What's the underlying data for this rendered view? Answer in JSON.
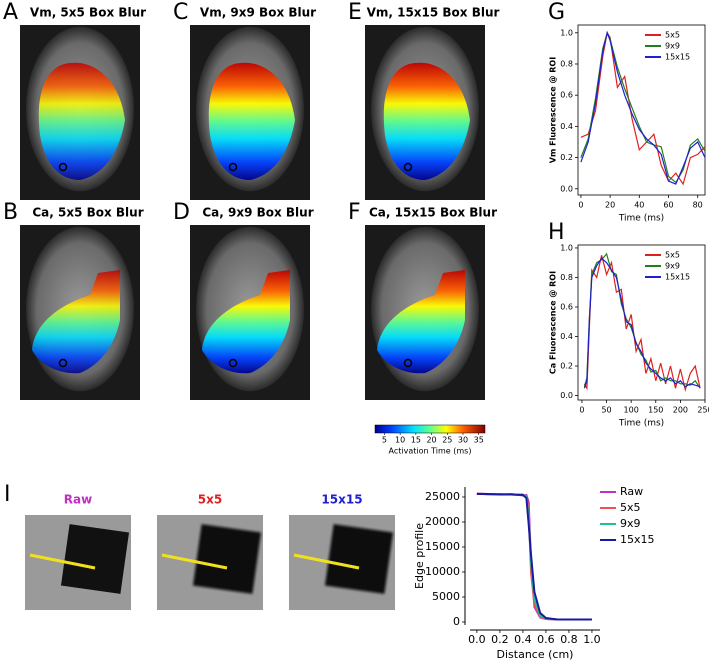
{
  "panels": [
    {
      "letter": "A",
      "title": "Vm, 5x5 Box Blur"
    },
    {
      "letter": "C",
      "title": "Vm, 9x9 Box Blur"
    },
    {
      "letter": "E",
      "title": "Vm, 15x15 Box Blur"
    },
    {
      "letter": "B",
      "title": "Ca, 5x5 Box Blur"
    },
    {
      "letter": "D",
      "title": "Ca, 9x9 Box Blur"
    },
    {
      "letter": "F",
      "title": "Ca, 15x15 Box Blur"
    }
  ],
  "colorbar": {
    "ticks": [
      5,
      10,
      15,
      20,
      25,
      30,
      35
    ],
    "lim": [
      2,
      37
    ],
    "label": "Activation Time (ms)"
  },
  "edge_panel": {
    "letter": "I",
    "images": [
      {
        "title": "Raw",
        "color": "#c030c0"
      },
      {
        "title": "5x5",
        "color": "#e02020"
      },
      {
        "title": "15x15",
        "color": "#2020d0"
      }
    ]
  },
  "chart_data": [
    {
      "type": "line",
      "letter": "G",
      "ylabel": "Vm Fluorescence @ ROI",
      "xlabel": "Time (ms)",
      "x": [
        0,
        5,
        10,
        15,
        18,
        20,
        25,
        30,
        35,
        40,
        45,
        50,
        55,
        60,
        65,
        70,
        75,
        80,
        85
      ],
      "xlim": [
        -2,
        85
      ],
      "xticks": [
        0,
        20,
        40,
        60,
        80
      ],
      "ylim": [
        -0.04,
        1.05
      ],
      "yticks": [
        {
          "value": 0,
          "label": "0.0"
        },
        0.2,
        0.4,
        0.6,
        0.8,
        {
          "value": 1,
          "label": "1.0"
        }
      ],
      "series": [
        {
          "name": "5x5",
          "color": "#e02020",
          "values": [
            0.33,
            0.35,
            0.5,
            0.85,
            1.0,
            0.97,
            0.65,
            0.72,
            0.45,
            0.25,
            0.3,
            0.35,
            0.15,
            0.05,
            0.1,
            0.03,
            0.2,
            0.22,
            0.27
          ]
        },
        {
          "name": "9x9",
          "color": "#208020",
          "values": [
            0.2,
            0.32,
            0.58,
            0.9,
            1.0,
            0.96,
            0.78,
            0.64,
            0.52,
            0.4,
            0.3,
            0.28,
            0.27,
            0.08,
            0.04,
            0.12,
            0.28,
            0.32,
            0.24
          ]
        },
        {
          "name": "15x15",
          "color": "#2020d0",
          "values": [
            0.17,
            0.3,
            0.55,
            0.88,
            1.0,
            0.95,
            0.75,
            0.6,
            0.48,
            0.38,
            0.32,
            0.28,
            0.22,
            0.05,
            0.03,
            0.14,
            0.26,
            0.3,
            0.2
          ]
        }
      ]
    },
    {
      "type": "line",
      "letter": "H",
      "ylabel": "Ca Fluorescence @ ROI",
      "xlabel": "Time (ms)",
      "x": [
        5,
        10,
        15,
        20,
        30,
        40,
        50,
        60,
        70,
        80,
        90,
        100,
        110,
        120,
        130,
        140,
        150,
        160,
        170,
        180,
        190,
        200,
        210,
        220,
        230,
        240
      ],
      "xlim": [
        -8,
        250
      ],
      "xticks": [
        0,
        50,
        100,
        150,
        200,
        250
      ],
      "ylim": [
        -0.03,
        1.02
      ],
      "yticks": [
        {
          "value": 0,
          "label": "0.0"
        },
        0.2,
        0.4,
        0.6,
        0.8,
        {
          "value": 1,
          "label": "1.0"
        }
      ],
      "series": [
        {
          "name": "5x5",
          "color": "#e02020",
          "values": [
            0.08,
            0.05,
            0.45,
            0.85,
            0.8,
            0.95,
            0.82,
            0.9,
            0.7,
            0.72,
            0.45,
            0.55,
            0.3,
            0.38,
            0.15,
            0.25,
            0.1,
            0.22,
            0.08,
            0.2,
            0.05,
            0.18,
            0.04,
            0.15,
            0.2,
            0.05
          ]
        },
        {
          "name": "9x9",
          "color": "#208020",
          "values": [
            0.06,
            0.12,
            0.52,
            0.82,
            0.9,
            0.92,
            0.96,
            0.84,
            0.82,
            0.62,
            0.52,
            0.46,
            0.36,
            0.28,
            0.24,
            0.16,
            0.17,
            0.1,
            0.12,
            0.1,
            0.1,
            0.08,
            0.08,
            0.07,
            0.1,
            0.05
          ]
        },
        {
          "name": "15x15",
          "color": "#2020d0",
          "values": [
            0.05,
            0.1,
            0.5,
            0.8,
            0.88,
            0.93,
            0.9,
            0.85,
            0.8,
            0.65,
            0.5,
            0.48,
            0.35,
            0.3,
            0.22,
            0.18,
            0.15,
            0.12,
            0.1,
            0.12,
            0.08,
            0.1,
            0.06,
            0.08,
            0.07,
            0.06
          ]
        }
      ]
    },
    {
      "type": "line",
      "ylabel": "Edge profile",
      "xlabel": "Distance (cm)",
      "x": [
        0,
        0.1,
        0.2,
        0.3,
        0.4,
        0.43,
        0.45,
        0.47,
        0.5,
        0.55,
        0.6,
        0.7,
        0.8,
        0.9,
        1.0
      ],
      "xlim": [
        -0.06,
        1.07
      ],
      "xticks": [
        {
          "value": 0,
          "label": "0.0"
        },
        0.2,
        0.4,
        0.6,
        0.8,
        {
          "value": 1,
          "label": "1.0"
        }
      ],
      "ylim": [
        -600,
        27000
      ],
      "yticks": [
        0,
        5000,
        10000,
        15000,
        20000,
        25000
      ],
      "series": [
        {
          "name": "Raw",
          "color": "#c030c0",
          "values": [
            25700,
            25600,
            25500,
            25600,
            25300,
            25400,
            24000,
            12000,
            3000,
            900,
            600,
            500,
            500,
            500,
            500
          ]
        },
        {
          "name": "5x5",
          "color": "#f05050",
          "values": [
            25700,
            25500,
            25600,
            25500,
            25400,
            25200,
            22000,
            10000,
            3500,
            1000,
            600,
            500,
            500,
            500,
            500
          ]
        },
        {
          "name": "9x9",
          "color": "#20c090",
          "values": [
            25600,
            25600,
            25500,
            25500,
            25500,
            25000,
            21000,
            12000,
            4500,
            1300,
            700,
            500,
            500,
            500,
            500
          ]
        },
        {
          "name": "15x15",
          "color": "#1a1aa0",
          "values": [
            25600,
            25600,
            25500,
            25500,
            25400,
            24800,
            19500,
            13500,
            6000,
            1800,
            800,
            500,
            500,
            500,
            500
          ]
        }
      ]
    }
  ]
}
